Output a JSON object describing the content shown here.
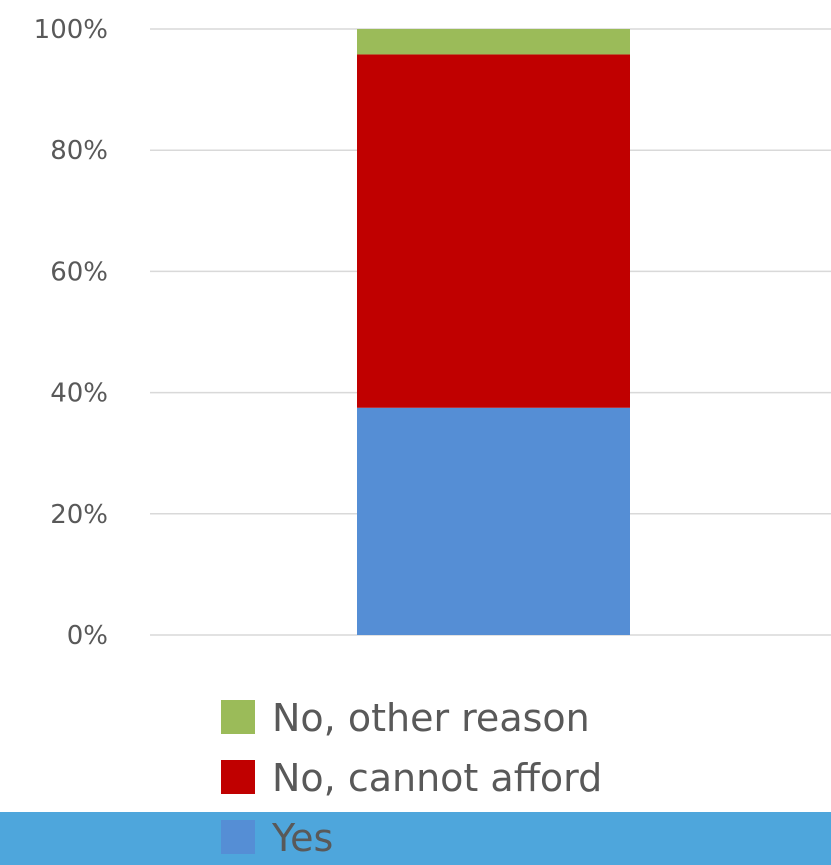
{
  "chart_data": {
    "type": "bar",
    "stacked": true,
    "percent": true,
    "categories": [
      ""
    ],
    "series": [
      {
        "name": "Yes",
        "values": [
          37.5
        ],
        "color": "#558ed5"
      },
      {
        "name": "No, cannot afford",
        "values": [
          58.3
        ],
        "color": "#c00000"
      },
      {
        "name": "No, other reason",
        "values": [
          4.2
        ],
        "color": "#9bbb59"
      }
    ],
    "ylim": [
      0,
      100
    ],
    "yticks": [
      "0%",
      "20%",
      "40%",
      "60%",
      "80%",
      "100%"
    ],
    "ytick_values": [
      0,
      20,
      40,
      60,
      80,
      100
    ],
    "grid": true,
    "legend_position": "bottom",
    "legend_order": [
      "No, other reason",
      "No, cannot afford",
      "Yes"
    ]
  },
  "colors": {
    "gridline": "#d9d9d9",
    "text": "#595959",
    "bottom_band": "#4ea6dc"
  }
}
